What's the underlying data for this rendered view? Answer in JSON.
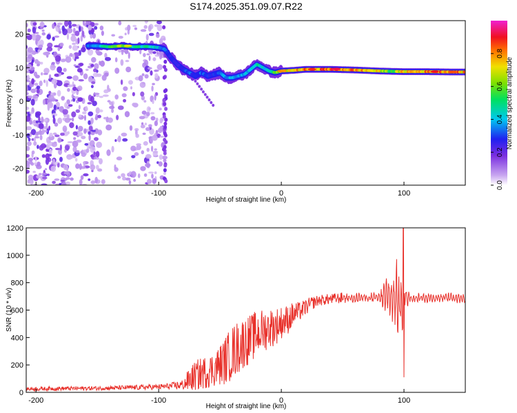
{
  "figure_title": "S174.2025.351.09.07.R22",
  "colors": {
    "snr_line": "#e8302a",
    "frame": "#000000",
    "background": "#ffffff"
  },
  "chart_data": [
    {
      "type": "heatmap",
      "name": "spectrogram",
      "title": "S174.2025.351.09.07.R22",
      "xlabel": "Height of straight line (km)",
      "ylabel": "Frequency (Hz)",
      "xlim": [
        -208,
        150
      ],
      "ylim": [
        -25,
        24
      ],
      "xticks": [
        -200,
        -100,
        0,
        100
      ],
      "yticks": [
        -20,
        -10,
        0,
        10,
        20
      ],
      "colorbar": {
        "label": "Normalized spectral amplitude",
        "range": [
          0,
          1
        ],
        "ticks": [
          0.0,
          0.2,
          0.4,
          0.6,
          0.8
        ],
        "tick_labels": [
          "0.0",
          "0.2",
          "0.4",
          "0.6",
          "0.8"
        ],
        "colormap": "rainbow (violet-blue-cyan-green-yellow-red-magenta)"
      },
      "ridge": {
        "x": [
          -158,
          -150,
          -140,
          -130,
          -120,
          -110,
          -100,
          -95,
          -90,
          -85,
          -80,
          -75,
          -70,
          -65,
          -60,
          -55,
          -50,
          -45,
          -40,
          -35,
          -30,
          -25,
          -20,
          -15,
          -10,
          -5,
          0,
          10,
          20,
          40,
          60,
          80,
          90,
          100,
          120,
          140,
          150
        ],
        "frequency": [
          16.5,
          16.5,
          16.2,
          16.5,
          16.2,
          16.3,
          16.0,
          15.5,
          13,
          11,
          9.5,
          8.5,
          7.5,
          8.5,
          7.5,
          8.0,
          8.5,
          7.0,
          7.0,
          7.5,
          8.0,
          9.5,
          11,
          10,
          9,
          8.5,
          9,
          9.2,
          9.5,
          9.5,
          9.3,
          9.0,
          8.9,
          8.8,
          8.8,
          8.7,
          8.7
        ],
        "amplitude": [
          0.35,
          0.4,
          0.55,
          0.7,
          0.5,
          0.5,
          0.45,
          0.35,
          0.3,
          0.3,
          0.3,
          0.35,
          0.3,
          0.35,
          0.3,
          0.3,
          0.35,
          0.4,
          0.45,
          0.4,
          0.4,
          0.4,
          0.5,
          0.45,
          0.45,
          0.6,
          0.75,
          0.8,
          0.85,
          0.9,
          0.85,
          0.75,
          0.6,
          0.8,
          0.85,
          0.9,
          0.8
        ]
      },
      "noise_region_x": [
        -208,
        -95
      ]
    },
    {
      "type": "line",
      "name": "snr",
      "xlabel": "Height of straight line (km)",
      "ylabel": "SNR (10 * v/v)",
      "xlim": [
        -208,
        150
      ],
      "ylim": [
        0,
        1200
      ],
      "xticks": [
        -200,
        -100,
        0,
        100
      ],
      "yticks": [
        0,
        200,
        400,
        600,
        800,
        1000,
        1200
      ],
      "series": [
        {
          "name": "SNR",
          "x": [
            -208,
            -180,
            -150,
            -120,
            -100,
            -90,
            -80,
            -75,
            -70,
            -65,
            -60,
            -55,
            -50,
            -45,
            -40,
            -35,
            -30,
            -25,
            -20,
            -15,
            -10,
            -5,
            0,
            5,
            10,
            15,
            20,
            25,
            30,
            40,
            50,
            60,
            70,
            80,
            85,
            90,
            95,
            98,
            100,
            105,
            110,
            120,
            130,
            140,
            150
          ],
          "y": [
            25,
            28,
            30,
            35,
            40,
            45,
            55,
            90,
            120,
            140,
            150,
            170,
            200,
            240,
            290,
            330,
            370,
            390,
            430,
            450,
            470,
            480,
            510,
            530,
            570,
            590,
            620,
            650,
            670,
            680,
            690,
            690,
            690,
            690,
            700,
            690,
            680,
            650,
            690,
            690,
            690,
            690,
            690,
            690,
            690
          ],
          "noise_amplitude": [
            15,
            15,
            15,
            18,
            20,
            25,
            40,
            90,
            110,
            120,
            120,
            130,
            150,
            180,
            200,
            200,
            190,
            180,
            170,
            160,
            150,
            140,
            120,
            110,
            90,
            70,
            60,
            50,
            40,
            40,
            40,
            40,
            40,
            40,
            150,
            280,
            420,
            300,
            150,
            40,
            40,
            40,
            40,
            40,
            40
          ]
        }
      ],
      "notable": {
        "min_near_x": 100,
        "min_value": 110,
        "max_near_x": 100,
        "max_value": 1200
      }
    }
  ]
}
